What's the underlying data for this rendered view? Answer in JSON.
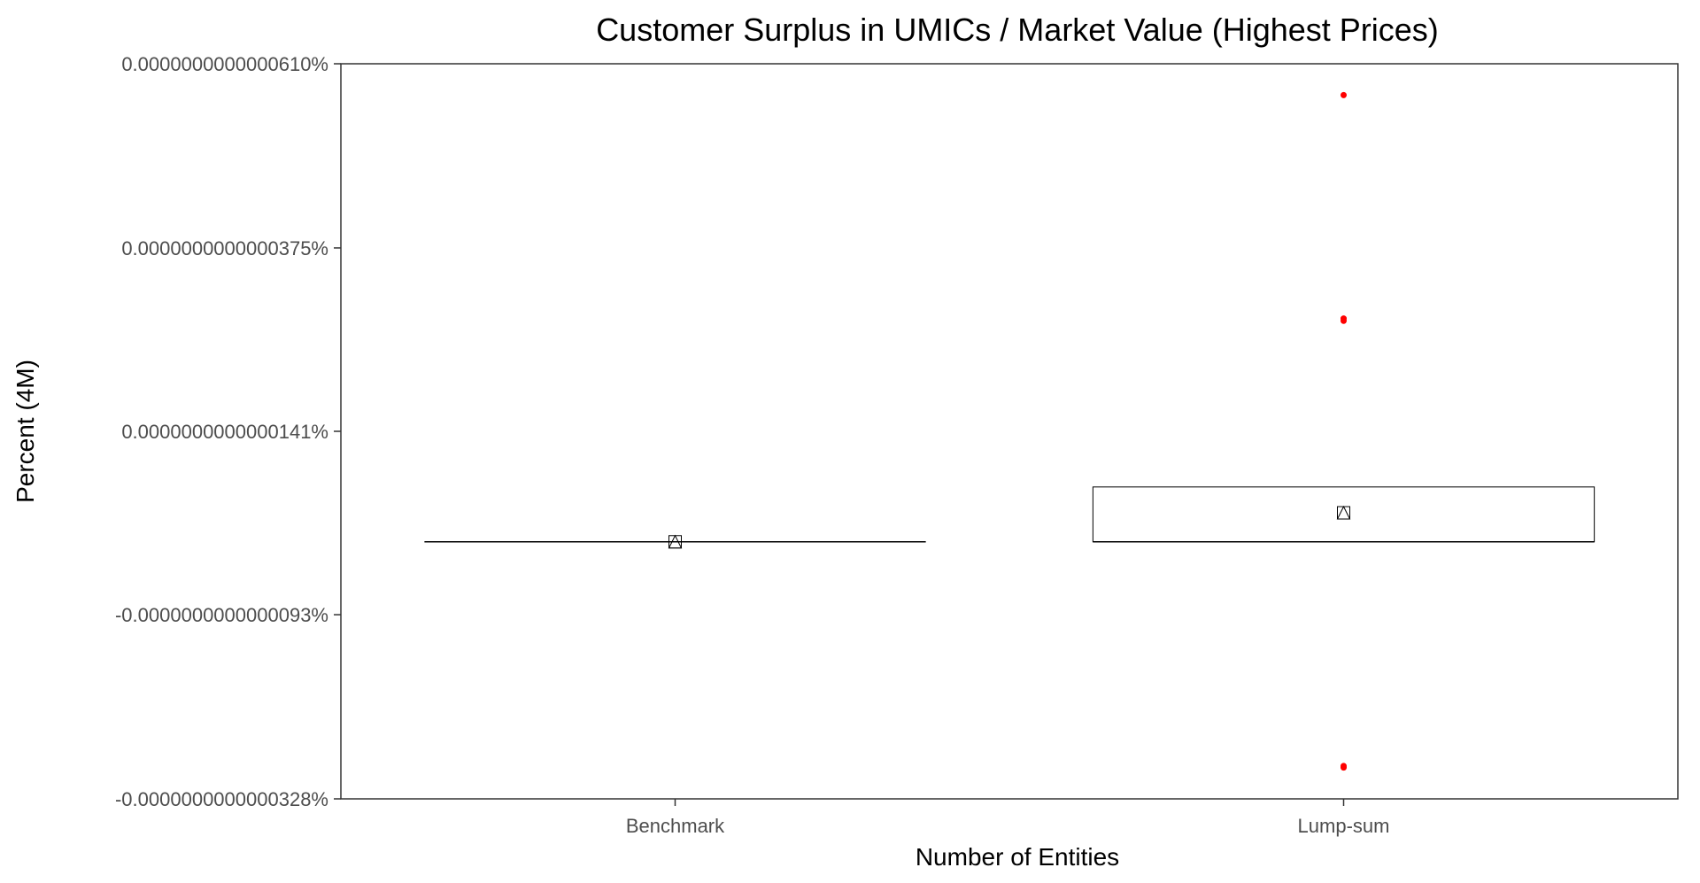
{
  "chart_data": {
    "type": "box",
    "title": "Customer Surplus in UMICs / Market Value (Highest Prices)",
    "xlabel": "Number of Entities",
    "ylabel": "Percent (4M)",
    "categories": [
      "Benchmark",
      "Lump-sum"
    ],
    "y_ticks": [
      {
        "value": -3.28e-15,
        "label": "-0.0000000000000328%"
      },
      {
        "value": -9.3e-16,
        "label": "-0.0000000000000093%"
      },
      {
        "value": 1.41e-15,
        "label": "0.0000000000000141%"
      },
      {
        "value": 3.75e-15,
        "label": "0.0000000000000375%"
      },
      {
        "value": 6.1e-15,
        "label": "0.0000000000000610%"
      }
    ],
    "ylim": [
      -3.28e-15,
      6.1e-15
    ],
    "boxes": [
      {
        "category": "Benchmark",
        "q1": 0.0,
        "median": 0.0,
        "q3": 0.0,
        "mean": 0.0,
        "outliers": []
      },
      {
        "category": "Lump-sum",
        "q1": 0.0,
        "median": 0.0,
        "q3": 7e-16,
        "mean": 3.7e-16,
        "outliers": [
          5.7e-15,
          2.85e-15,
          2.82e-15,
          -2.86e-15,
          -2.88e-15
        ]
      }
    ],
    "grid": false,
    "legend": "none",
    "colors": {
      "outlier": "#ff0000",
      "box_stroke": "#000000",
      "axis": "#333333",
      "tick_text": "#4d4d4d"
    },
    "mean_marker": "triangle-in-square"
  }
}
